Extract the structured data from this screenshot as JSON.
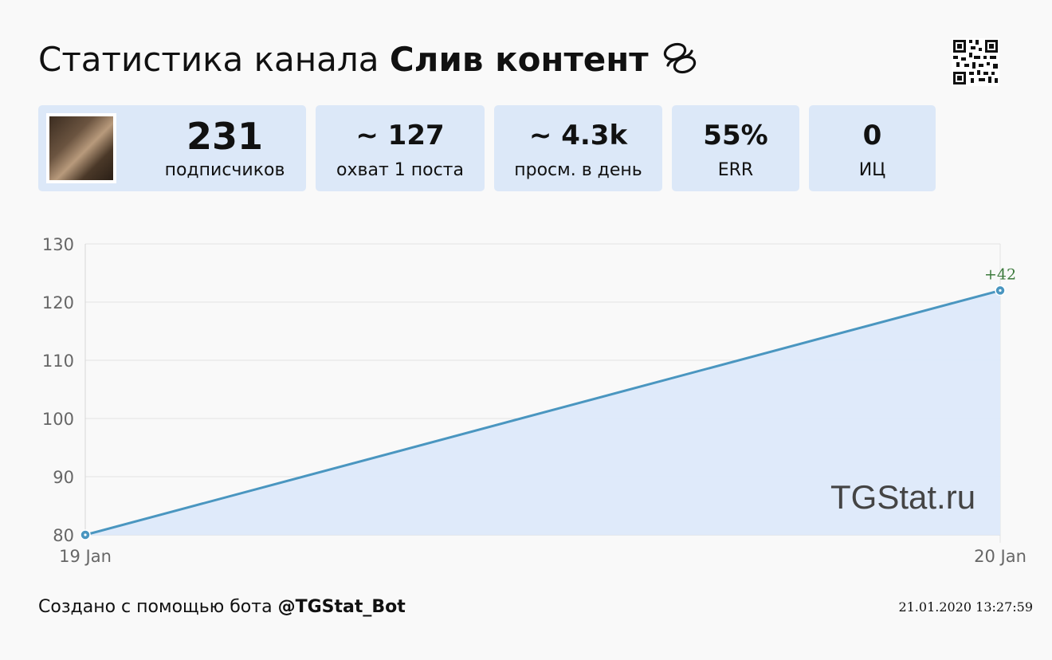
{
  "header": {
    "title_prefix": "Статистика канала",
    "channel_name": "Слив контент",
    "title_icon": "knot-icon"
  },
  "qr_icon": "qr-code-icon",
  "stats": [
    {
      "value": "231",
      "label": "подписчиков"
    },
    {
      "value": "~ 127",
      "label": "охват 1 поста"
    },
    {
      "value": "~ 4.3k",
      "label": "просм. в день"
    },
    {
      "value": "55%",
      "label": "ERR"
    },
    {
      "value": "0",
      "label": "ИЦ"
    }
  ],
  "chart_data": {
    "type": "area",
    "categories": [
      "19 Jan",
      "20 Jan"
    ],
    "series": [
      {
        "values": [
          80,
          122
        ]
      }
    ],
    "yticks": [
      80,
      90,
      100,
      110,
      120,
      130
    ],
    "ylim": [
      80,
      130
    ],
    "annotations": [
      {
        "index": 1,
        "text": "+42"
      }
    ],
    "grid": true,
    "line_color": "#4a96c0",
    "fill_color": "#dde9fa",
    "annotation_color": "#3d7a3d"
  },
  "watermark": "TGStat.ru",
  "footer": {
    "created_text": "Создано с помощью бота",
    "bot_name": "@TGStat_Bot",
    "timestamp": "21.01.2020 13:27:59"
  }
}
